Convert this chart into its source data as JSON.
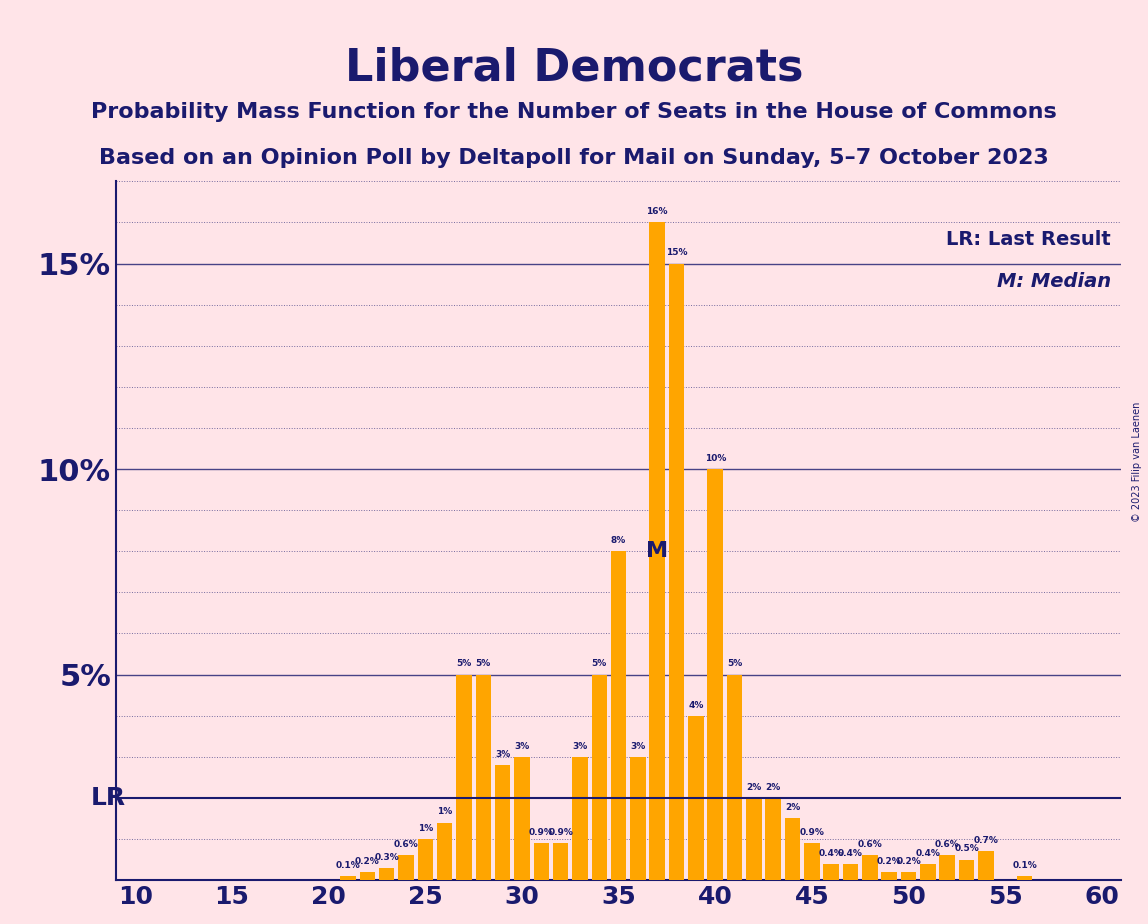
{
  "title": "Liberal Democrats",
  "subtitle1": "Probability Mass Function for the Number of Seats in the House of Commons",
  "subtitle2": "Based on an Opinion Poll by Deltapoll for Mail on Sunday, 5–7 October 2023",
  "copyright": "© 2023 Filip van Laenen",
  "lr_label": "LR: Last Result",
  "median_label": "M: Median",
  "bar_color": "#FFA500",
  "background_color": "#FFE4E8",
  "text_color": "#1a1a6e",
  "lr_line_value": 2.0,
  "median_seat": 37,
  "lr_seat": 11,
  "x_min": 10,
  "x_max": 60,
  "y_max": 17,
  "seats": [
    10,
    11,
    12,
    13,
    14,
    15,
    16,
    17,
    18,
    19,
    20,
    21,
    22,
    23,
    24,
    25,
    26,
    27,
    28,
    29,
    30,
    31,
    32,
    33,
    34,
    35,
    36,
    37,
    38,
    39,
    40,
    41,
    42,
    43,
    44,
    45,
    46,
    47,
    48,
    49,
    50,
    51,
    52,
    53,
    54,
    55,
    56,
    57,
    58,
    59,
    60
  ],
  "values": [
    0.0,
    0.0,
    0.0,
    0.0,
    0.0,
    0.0,
    0.0,
    0.0,
    0.0,
    0.0,
    0.0,
    0.1,
    0.2,
    0.3,
    0.6,
    1.0,
    1.4,
    5.0,
    5.0,
    2.8,
    3.0,
    0.9,
    0.9,
    3.0,
    5.0,
    8.0,
    3.0,
    16.0,
    15.0,
    4.0,
    10.0,
    5.0,
    2.0,
    2.0,
    1.5,
    0.9,
    0.4,
    0.4,
    0.6,
    0.2,
    0.2,
    0.4,
    0.6,
    0.5,
    0.7,
    0.0,
    0.1,
    0.0,
    0.0,
    0.0,
    0.0
  ],
  "yticks": [
    0,
    5,
    10,
    15
  ],
  "ytick_labels": [
    "",
    "5%",
    "10%",
    "15%"
  ]
}
